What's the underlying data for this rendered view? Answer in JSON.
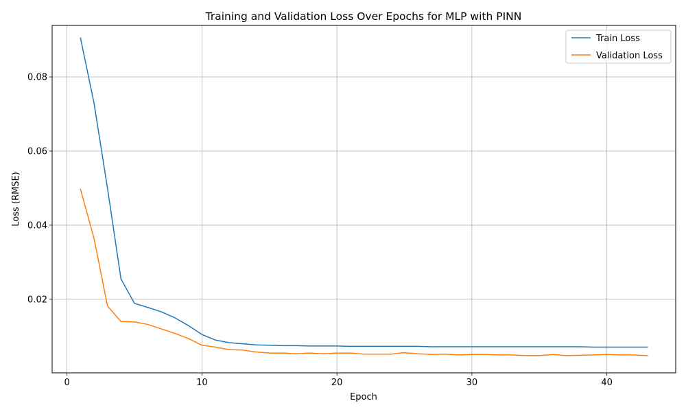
{
  "chart_data": {
    "type": "line",
    "title": "Training and Validation Loss Over Epochs for MLP with PINN",
    "xlabel": "Epoch",
    "ylabel": "Loss (RMSE)",
    "xlim": [
      -1.1,
      45.1
    ],
    "ylim": [
      0.00015,
      0.0939
    ],
    "xticks": [
      0,
      10,
      20,
      30,
      40
    ],
    "xtick_labels": [
      "0",
      "10",
      "20",
      "30",
      "40"
    ],
    "yticks": [
      0.02,
      0.04,
      0.06,
      0.08
    ],
    "ytick_labels": [
      "0.02",
      "0.04",
      "0.06",
      "0.08"
    ],
    "grid": true,
    "legend_position": "top-right",
    "x": [
      1,
      2,
      3,
      4,
      5,
      6,
      7,
      8,
      9,
      10,
      11,
      12,
      13,
      14,
      15,
      16,
      17,
      18,
      19,
      20,
      21,
      22,
      23,
      24,
      25,
      26,
      27,
      28,
      29,
      30,
      31,
      32,
      33,
      34,
      35,
      36,
      37,
      38,
      39,
      40,
      41,
      42,
      43
    ],
    "series": [
      {
        "name": "Train Loss",
        "color": "#1f77b4",
        "values": [
          0.0905,
          0.073,
          0.05,
          0.0255,
          0.0189,
          0.0178,
          0.0166,
          0.015,
          0.0129,
          0.0105,
          0.009,
          0.0083,
          0.008,
          0.0077,
          0.0076,
          0.0075,
          0.0075,
          0.0074,
          0.0074,
          0.0074,
          0.0073,
          0.0073,
          0.0073,
          0.0073,
          0.0073,
          0.0073,
          0.0072,
          0.0072,
          0.0072,
          0.0072,
          0.0072,
          0.0072,
          0.0072,
          0.0072,
          0.0072,
          0.0072,
          0.0072,
          0.0072,
          0.0071,
          0.0071,
          0.0071,
          0.0071,
          0.0071
        ]
      },
      {
        "name": "Validation Loss",
        "color": "#ff7f0e",
        "values": [
          0.0497,
          0.0365,
          0.0182,
          0.014,
          0.0139,
          0.0132,
          0.012,
          0.0108,
          0.0094,
          0.0076,
          0.0071,
          0.0064,
          0.0063,
          0.0058,
          0.0055,
          0.0055,
          0.0053,
          0.0055,
          0.0053,
          0.0055,
          0.0055,
          0.0052,
          0.0052,
          0.0052,
          0.0056,
          0.0053,
          0.0051,
          0.0052,
          0.005,
          0.0051,
          0.0051,
          0.005,
          0.005,
          0.0048,
          0.0048,
          0.0051,
          0.0048,
          0.0049,
          0.005,
          0.0051,
          0.005,
          0.005,
          0.0048
        ]
      }
    ]
  }
}
